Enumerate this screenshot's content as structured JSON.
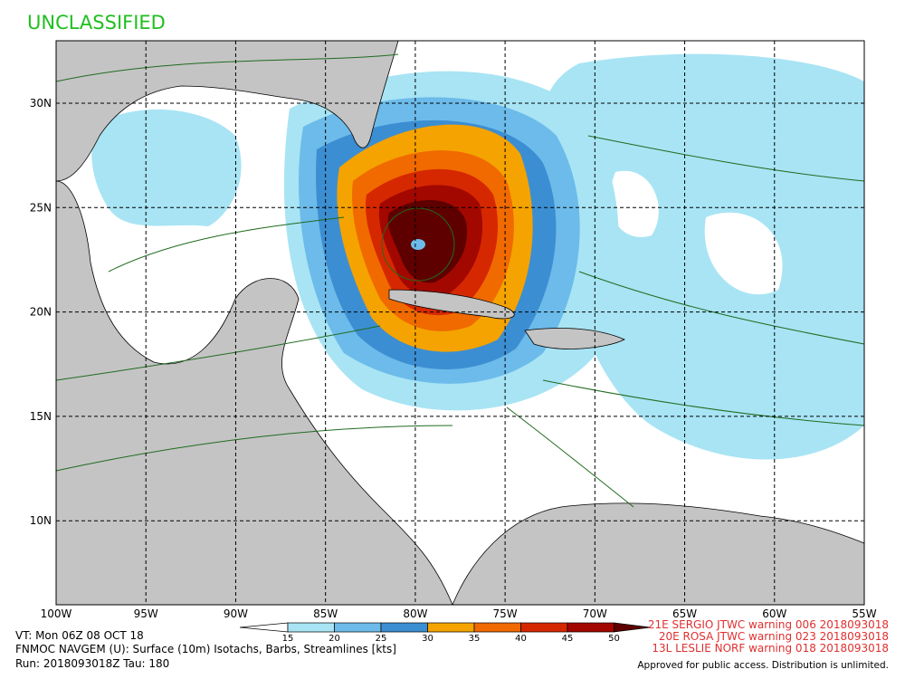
{
  "header": {
    "classification": "UNCLASSIFIED"
  },
  "map": {
    "lon_labels": [
      "100W",
      "95W",
      "90W",
      "85W",
      "80W",
      "75W",
      "70W",
      "65W",
      "60W",
      "55W"
    ],
    "lat_labels": [
      "30N",
      "25N",
      "20N",
      "15N",
      "10N"
    ]
  },
  "legend": {
    "ticks": [
      15,
      20,
      25,
      30,
      35,
      40,
      45,
      50
    ],
    "colors": [
      "#a8e4f4",
      "#6cbbea",
      "#3c8ed2",
      "#f5a300",
      "#f06a00",
      "#d62800",
      "#a20800",
      "#5e0000"
    ]
  },
  "footer": {
    "vt": "VT: Mon 06Z 08 OCT 18",
    "product": "FNMOC NAVGEM (U): Surface (10m) Isotachs, Barbs, Streamlines [kts]",
    "run": "Run: 2018093018Z Tau: 180",
    "warnings": [
      "21E SERGIO JTWC warning 006 2018093018",
      "20E ROSA JTWC warning 023 2018093018",
      "13L LESLIE NORF warning 018 2018093018"
    ],
    "approval": "Approved for public access. Distribution is unlimited."
  }
}
